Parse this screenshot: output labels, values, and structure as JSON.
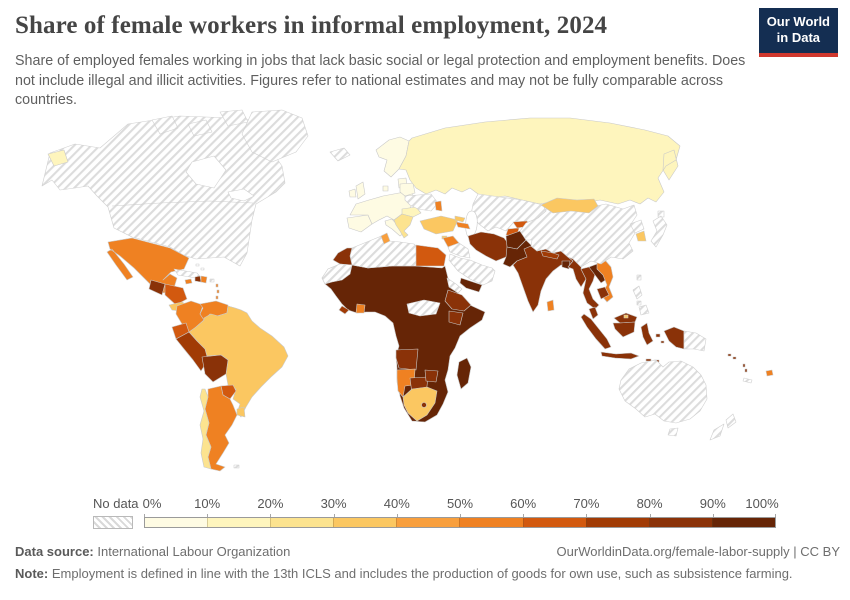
{
  "header": {
    "title": "Share of female workers in informal employment, 2024",
    "subtitle": "Share of employed females working in jobs that lack basic social or legal protection and employment benefits. Does not include illegal and illicit activities. Figures refer to national estimates and may not be fully comparable across countries.",
    "logo": {
      "line1": "Our World",
      "line2": "in Data",
      "bg_color": "#142E52",
      "bar_color": "#D0382E"
    }
  },
  "legend": {
    "no_data_label": "No data",
    "ticks": [
      "0%",
      "10%",
      "20%",
      "30%",
      "40%",
      "50%",
      "60%",
      "70%",
      "80%",
      "90%",
      "100%"
    ]
  },
  "footer": {
    "source_label": "Data source:",
    "source_text": "International Labour Organization",
    "right_text": "OurWorldinData.org/female-labor-supply | CC BY",
    "note_label": "Note:",
    "note_text": "Employment is defined in line with the 13th ICLS and includes the production of goods for own use, such as subsistence farming."
  },
  "chart_data": {
    "type": "choropleth_map",
    "title": "Share of female workers in informal employment",
    "year": 2024,
    "unit": "% of employed females",
    "legend_position": "bottom",
    "no_data_pattern": "diagonal-hatch",
    "bins": [
      {
        "label": "0-10%",
        "color": "#FEFBE3"
      },
      {
        "label": "10-20%",
        "color": "#FEF5BD"
      },
      {
        "label": "20-30%",
        "color": "#FCE38F"
      },
      {
        "label": "30-40%",
        "color": "#FBC761"
      },
      {
        "label": "40-50%",
        "color": "#F89F3D"
      },
      {
        "label": "50-60%",
        "color": "#EF8122"
      },
      {
        "label": "60-70%",
        "color": "#D2590F"
      },
      {
        "label": "70-80%",
        "color": "#A13B05"
      },
      {
        "label": "80-90%",
        "color": "#8A3208"
      },
      {
        "label": "90-100%",
        "color": "#662506"
      }
    ],
    "regions": [
      {
        "id": "north_america",
        "name": "United States & Canada",
        "bin": null
      },
      {
        "id": "greenland",
        "name": "Greenland",
        "bin": null
      },
      {
        "id": "iceland",
        "name": "Iceland",
        "bin": null
      },
      {
        "id": "mexico",
        "name": "Mexico",
        "bin": 5
      },
      {
        "id": "guatemala",
        "name": "Guatemala",
        "bin": 8
      },
      {
        "id": "honduras_nicaragua",
        "name": "Honduras & Nicaragua",
        "bin": 6
      },
      {
        "id": "costa_rica_panama",
        "name": "Costa Rica & Panama",
        "bin": 3
      },
      {
        "id": "cuba",
        "name": "Cuba",
        "bin": null
      },
      {
        "id": "bahamas",
        "name": "Bahamas",
        "bin": null
      },
      {
        "id": "jamaica",
        "name": "Jamaica",
        "bin": 5
      },
      {
        "id": "haiti",
        "name": "Haiti",
        "bin": 8
      },
      {
        "id": "dominican_republic",
        "name": "Dominican Republic",
        "bin": 5
      },
      {
        "id": "puerto_rico",
        "name": "Puerto Rico",
        "bin": null
      },
      {
        "id": "lesser_antilles",
        "name": "Lesser Antilles",
        "bin": 5
      },
      {
        "id": "trinidad",
        "name": "Trinidad and Tobago",
        "bin": 5
      },
      {
        "id": "colombia",
        "name": "Colombia",
        "bin": 5
      },
      {
        "id": "venezuela",
        "name": "Venezuela",
        "bin": 5
      },
      {
        "id": "guyana",
        "name": "Guyana",
        "bin": 3
      },
      {
        "id": "suriname",
        "name": "Suriname",
        "bin": 3
      },
      {
        "id": "french_guiana",
        "name": "French Guiana",
        "bin": null
      },
      {
        "id": "ecuador",
        "name": "Ecuador",
        "bin": 6
      },
      {
        "id": "peru",
        "name": "Peru",
        "bin": 7
      },
      {
        "id": "bolivia",
        "name": "Bolivia",
        "bin": 8
      },
      {
        "id": "brazil",
        "name": "Brazil",
        "bin": 3
      },
      {
        "id": "paraguay",
        "name": "Paraguay",
        "bin": 6
      },
      {
        "id": "uruguay",
        "name": "Uruguay",
        "bin": 3
      },
      {
        "id": "argentina",
        "name": "Argentina",
        "bin": 5
      },
      {
        "id": "chile",
        "name": "Chile",
        "bin": 2
      },
      {
        "id": "falkland_islands",
        "name": "Falkland Islands",
        "bin": null
      },
      {
        "id": "iberia",
        "name": "Spain & Portugal",
        "bin": 0
      },
      {
        "id": "western_europe",
        "name": "Western & Central Europe",
        "bin": 0
      },
      {
        "id": "italy",
        "name": "Italy",
        "bin": 0
      },
      {
        "id": "uk",
        "name": "United Kingdom",
        "bin": 0
      },
      {
        "id": "ireland",
        "name": "Ireland",
        "bin": 0
      },
      {
        "id": "scandinavia",
        "name": "Norway, Sweden & Finland",
        "bin": 0
      },
      {
        "id": "denmark",
        "name": "Denmark",
        "bin": 0
      },
      {
        "id": "baltics",
        "name": "Baltic states",
        "bin": 0
      },
      {
        "id": "belarus",
        "name": "Belarus",
        "bin": 0
      },
      {
        "id": "romania_bulgaria",
        "name": "Romania & Bulgaria",
        "bin": 1
      },
      {
        "id": "balkans",
        "name": "Balkans & Greece",
        "bin": 2
      },
      {
        "id": "ukraine",
        "name": "Ukraine",
        "bin": null
      },
      {
        "id": "moldova",
        "name": "Moldova",
        "bin": 5
      },
      {
        "id": "russia",
        "name": "Russia",
        "bin": 1
      },
      {
        "id": "kazakhstan_central_asia",
        "name": "Kazakhstan, Uzbekistan & Turkmenistan",
        "bin": null
      },
      {
        "id": "kyrgyzstan",
        "name": "Kyrgyzstan",
        "bin": 6
      },
      {
        "id": "tajikistan",
        "name": "Tajikistan",
        "bin": 6
      },
      {
        "id": "turkey",
        "name": "Turkey",
        "bin": 3
      },
      {
        "id": "cyprus",
        "name": "Cyprus",
        "bin": 3
      },
      {
        "id": "georgia",
        "name": "Georgia",
        "bin": 3
      },
      {
        "id": "armenia_azerbaijan",
        "name": "Armenia & Azerbaijan",
        "bin": 5
      },
      {
        "id": "syria",
        "name": "Syria",
        "bin": 5
      },
      {
        "id": "iraq",
        "name": "Iraq",
        "bin": null
      },
      {
        "id": "saudi_arabia_gulf",
        "name": "Saudi Arabia & Gulf states",
        "bin": null
      },
      {
        "id": "yemen",
        "name": "Yemen",
        "bin": 9
      },
      {
        "id": "iran",
        "name": "Iran",
        "bin": 8
      },
      {
        "id": "afghanistan",
        "name": "Afghanistan",
        "bin": 9
      },
      {
        "id": "pakistan",
        "name": "Pakistan",
        "bin": 9
      },
      {
        "id": "india",
        "name": "India",
        "bin": 8
      },
      {
        "id": "nepal",
        "name": "Nepal",
        "bin": 7
      },
      {
        "id": "bangladesh",
        "name": "Bangladesh",
        "bin": 9
      },
      {
        "id": "sri_lanka",
        "name": "Sri Lanka",
        "bin": 5
      },
      {
        "id": "myanmar",
        "name": "Myanmar",
        "bin": 8
      },
      {
        "id": "thailand",
        "name": "Thailand",
        "bin": 8
      },
      {
        "id": "laos",
        "name": "Laos",
        "bin": 9
      },
      {
        "id": "cambodia",
        "name": "Cambodia",
        "bin": 8
      },
      {
        "id": "vietnam",
        "name": "Vietnam",
        "bin": 5
      },
      {
        "id": "malaysia",
        "name": "Malaysia",
        "bin": 8
      },
      {
        "id": "brunei",
        "name": "Brunei",
        "bin": 3
      },
      {
        "id": "indonesia",
        "name": "Indonesia",
        "bin": 8
      },
      {
        "id": "papua_new_guinea",
        "name": "Papua New Guinea",
        "bin": null
      },
      {
        "id": "philippines",
        "name": "Philippines",
        "bin": null
      },
      {
        "id": "taiwan",
        "name": "Taiwan",
        "bin": null
      },
      {
        "id": "china",
        "name": "China",
        "bin": null
      },
      {
        "id": "mongolia",
        "name": "Mongolia",
        "bin": 3
      },
      {
        "id": "north_korea",
        "name": "North Korea",
        "bin": null
      },
      {
        "id": "south_korea",
        "name": "South Korea",
        "bin": 3
      },
      {
        "id": "japan",
        "name": "Japan",
        "bin": null
      },
      {
        "id": "sub_saharan_africa",
        "name": "Sub-Saharan Africa (most countries)",
        "bin": 9
      },
      {
        "id": "algeria_libya",
        "name": "Algeria & Libya",
        "bin": null
      },
      {
        "id": "morocco",
        "name": "Morocco",
        "bin": 8
      },
      {
        "id": "western_sahara_mauritania",
        "name": "Western Sahara & Mauritania",
        "bin": null
      },
      {
        "id": "tunisia",
        "name": "Tunisia",
        "bin": 4
      },
      {
        "id": "egypt",
        "name": "Egypt",
        "bin": 6
      },
      {
        "id": "car_south_sudan",
        "name": "Central African Republic & South Sudan",
        "bin": null
      },
      {
        "id": "eritrea_djibouti",
        "name": "Eritrea & Djibouti",
        "bin": null
      },
      {
        "id": "ethiopia",
        "name": "Ethiopia",
        "bin": 8
      },
      {
        "id": "kenya",
        "name": "Kenya",
        "bin": 8
      },
      {
        "id": "ghana",
        "name": "Ghana",
        "bin": 5
      },
      {
        "id": "liberia",
        "name": "Liberia",
        "bin": 7
      },
      {
        "id": "angola",
        "name": "Angola",
        "bin": 8
      },
      {
        "id": "namibia",
        "name": "Namibia",
        "bin": 5
      },
      {
        "id": "botswana",
        "name": "Botswana",
        "bin": 8
      },
      {
        "id": "zimbabwe",
        "name": "Zimbabwe",
        "bin": 8
      },
      {
        "id": "south_africa",
        "name": "South Africa",
        "bin": 3
      },
      {
        "id": "lesotho",
        "name": "Lesotho",
        "bin": 8
      },
      {
        "id": "madagascar",
        "name": "Madagascar",
        "bin": 9
      },
      {
        "id": "australia",
        "name": "Australia",
        "bin": null
      },
      {
        "id": "new_zealand",
        "name": "New Zealand",
        "bin": null
      },
      {
        "id": "new_caledonia",
        "name": "New Caledonia",
        "bin": null
      },
      {
        "id": "fiji",
        "name": "Fiji",
        "bin": 5
      },
      {
        "id": "vanuatu",
        "name": "Vanuatu",
        "bin": 8
      },
      {
        "id": "solomon_islands",
        "name": "Solomon Islands",
        "bin": 8
      }
    ]
  }
}
